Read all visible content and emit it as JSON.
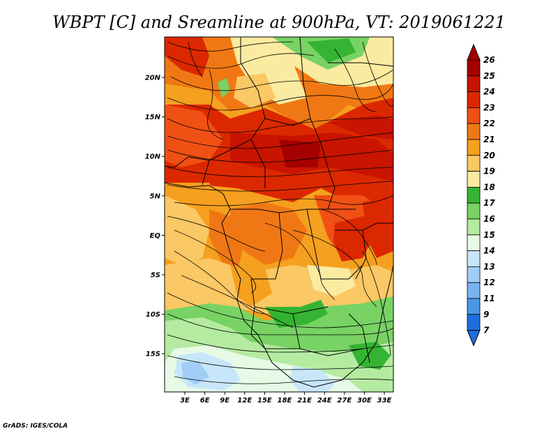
{
  "title": "WBPT [C] and Sreamline at 900hPa, VT: 2019061221",
  "credit": "GrADS: IGES/COLA",
  "map": {
    "variable": "WBPT [C]",
    "overlay": "Sreamline",
    "level": "900hPa",
    "valid_time": "2019061221",
    "lon_labels": [
      "3E",
      "6E",
      "9E",
      "12E",
      "15E",
      "18E",
      "21E",
      "24E",
      "27E",
      "30E",
      "33E"
    ],
    "lat_labels": [
      "20N",
      "15N",
      "10N",
      "5N",
      "EQ",
      "5S",
      "10S",
      "15S"
    ]
  },
  "colorbar": {
    "labels": [
      "26",
      "25",
      "24",
      "23",
      "22",
      "21",
      "20",
      "19",
      "18",
      "17",
      "16",
      "15",
      "14",
      "13",
      "12",
      "11",
      "9",
      "7"
    ],
    "colors": [
      "#a50000",
      "#c81400",
      "#dc2800",
      "#f05014",
      "#f07814",
      "#f5a01e",
      "#fac864",
      "#faeba0",
      "#34b432",
      "#78d264",
      "#b4eba0",
      "#e6fae6",
      "#c8e6fa",
      "#a0cdf5",
      "#78b4f0",
      "#4b96e6",
      "#1e6edc"
    ],
    "top_color": "#a50000",
    "bottom_color": "#1e6edc"
  }
}
